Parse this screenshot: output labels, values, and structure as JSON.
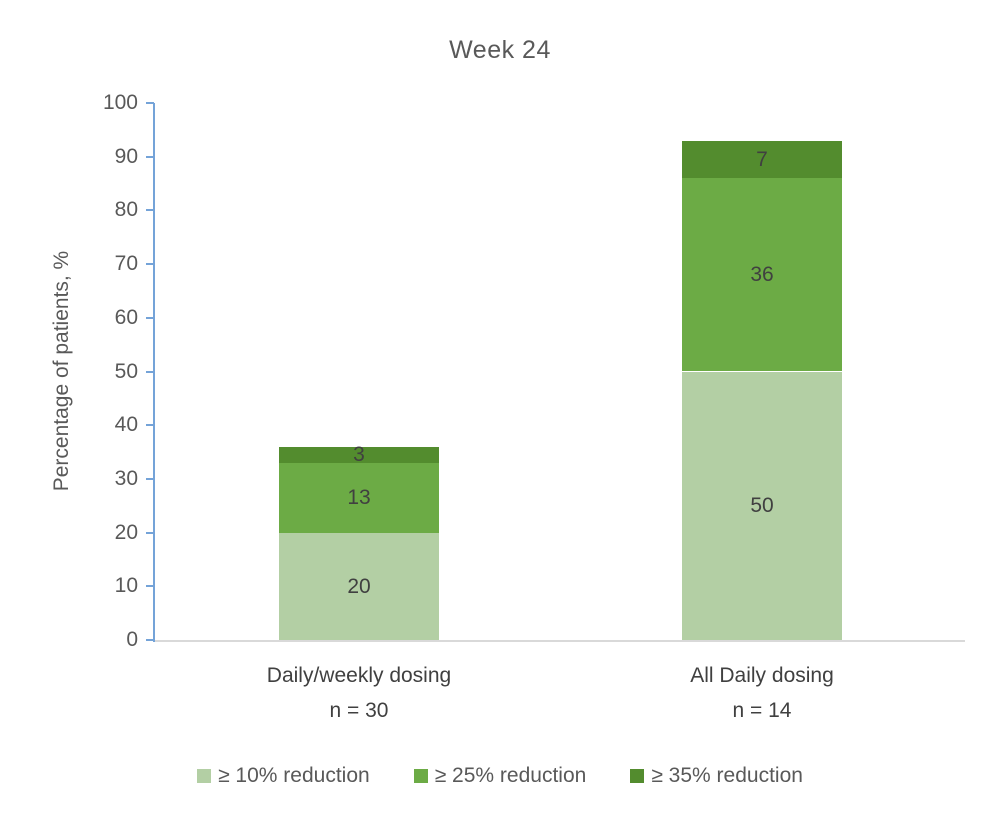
{
  "chart_data": {
    "type": "bar",
    "stacked": true,
    "title": "Week 24",
    "xlabel": "",
    "ylabel": "Percentage of patients, %",
    "ylim": [
      0,
      100
    ],
    "yticks": [
      0,
      10,
      20,
      30,
      40,
      50,
      60,
      70,
      80,
      90,
      100
    ],
    "grid": false,
    "legend_position": "bottom",
    "categories": [
      {
        "label": "Daily/weekly dosing",
        "sublabel": "n = 30"
      },
      {
        "label": "All Daily dosing",
        "sublabel": "n = 14"
      }
    ],
    "series": [
      {
        "name": "≥ 10% reduction",
        "color": "#B3CFA4",
        "values": [
          20,
          50
        ]
      },
      {
        "name": "≥ 25% reduction",
        "color": "#6CAB45",
        "values": [
          13,
          36
        ]
      },
      {
        "name": "≥ 35% reduction",
        "color": "#538C2E",
        "values": [
          3,
          7
        ]
      }
    ],
    "bar_totals": [
      36,
      93
    ]
  },
  "colors": {
    "axis_line": "#74A3D8",
    "baseline": "#D9D9D9",
    "title_text": "#595959",
    "tick_text": "#595959",
    "axis_title_text": "#595959",
    "category_text": "#404040",
    "data_label_text": "#404040",
    "legend_text": "#595959"
  }
}
